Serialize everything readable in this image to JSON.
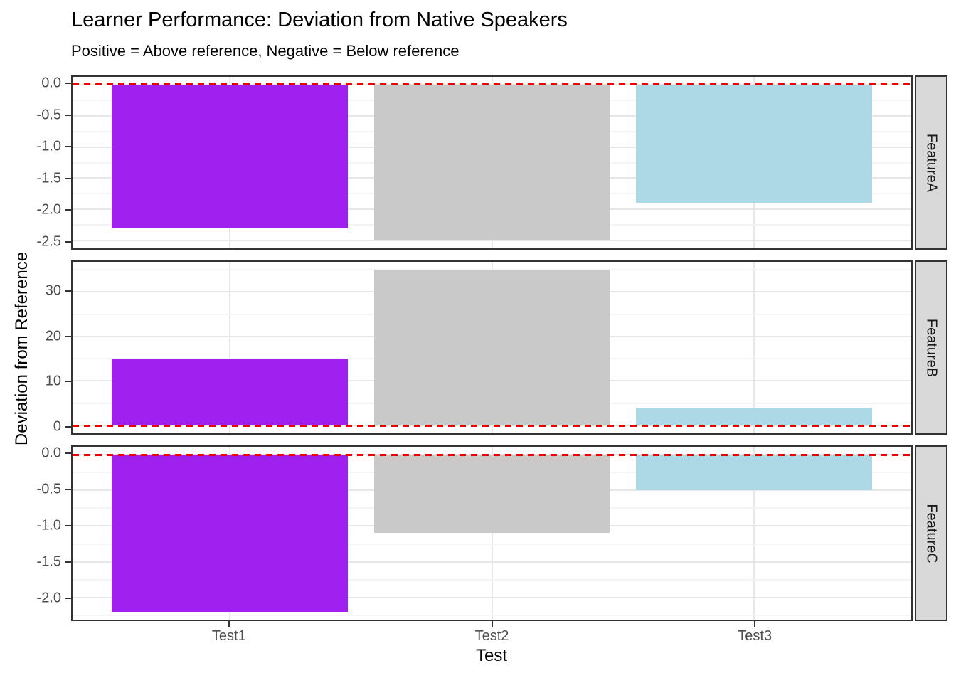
{
  "style": {
    "background": "#FFFFFF",
    "panel_border": "#333333",
    "grid_major": "#E7E7E7",
    "grid_minor": "#F4F4F4",
    "strip_bg": "#D9D9D9",
    "strip_border": "#333333",
    "strip_text": "#1A1A1A",
    "axis_text": "#4D4D4D",
    "tick_mark": "#333333",
    "title_color": "#000000"
  },
  "chart_data": {
    "type": "bar",
    "title": "Learner Performance: Deviation from Native Speakers",
    "subtitle": "Positive = Above reference, Negative = Below reference",
    "xlabel": "Test",
    "ylabel": "Deviation from Reference",
    "categories": [
      "Test1",
      "Test2",
      "Test3"
    ],
    "bar_colors": {
      "Test1": "#A020F0",
      "Test2": "#C9C9C9",
      "Test3": "#ADD8E6"
    },
    "legend": "none",
    "grid": "on",
    "reference_line": {
      "value": 0,
      "style": "dashed",
      "color": "#EE0000"
    },
    "facet_variable_values": [
      "FeatureA",
      "FeatureB",
      "FeatureC"
    ],
    "facets": [
      {
        "name": "FeatureA",
        "values": [
          -2.3,
          -2.5,
          -1.9
        ],
        "ylim": [
          -2.625,
          0.125
        ],
        "yticks": [
          {
            "value": 0,
            "label": "0.0"
          },
          {
            "value": -0.5,
            "label": "-0.5"
          },
          {
            "value": -1.0,
            "label": "-1.0"
          },
          {
            "value": -1.5,
            "label": "-1.5"
          },
          {
            "value": -2.0,
            "label": "-2.0"
          },
          {
            "value": -2.5,
            "label": "-2.5"
          }
        ]
      },
      {
        "name": "FeatureB",
        "values": [
          15,
          35,
          4
        ],
        "ylim": [
          -1.75,
          36.75
        ],
        "yticks": [
          {
            "value": 30,
            "label": "30"
          },
          {
            "value": 20,
            "label": "20"
          },
          {
            "value": 10,
            "label": "10"
          },
          {
            "value": 0,
            "label": "0"
          }
        ]
      },
      {
        "name": "FeatureC",
        "values": [
          -2.2,
          -1.1,
          -0.5
        ],
        "ylim": [
          -2.31,
          0.11
        ],
        "yticks": [
          {
            "value": 0,
            "label": "0.0"
          },
          {
            "value": -0.5,
            "label": "-0.5"
          },
          {
            "value": -1.0,
            "label": "-1.0"
          },
          {
            "value": -1.5,
            "label": "-1.5"
          },
          {
            "value": -2.0,
            "label": "-2.0"
          }
        ]
      }
    ]
  }
}
